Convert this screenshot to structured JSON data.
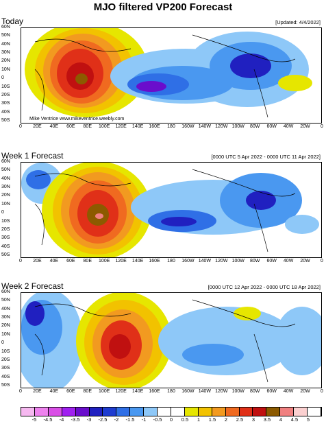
{
  "title": "MJO filtered VP200 Forecast",
  "panels": [
    {
      "label": "Today",
      "range": "[Updated: 4/4/2022]",
      "credit": "Mike Ventrice www.mikeventrice.weebly.com"
    },
    {
      "label": "Week 1 Forecast",
      "range": "[0000 UTC 5 Apr 2022 - 0000 UTC 11 Apr 2022]",
      "credit": ""
    },
    {
      "label": "Week 2 Forecast",
      "range": "[0000 UTC 12 Apr 2022 - 0000 UTC 18 Apr 2022]",
      "credit": ""
    }
  ],
  "lat_labels": [
    "60N",
    "50N",
    "40N",
    "30N",
    "20N",
    "10N",
    "0",
    "10S",
    "20S",
    "30S",
    "40S",
    "50S"
  ],
  "lon_labels": [
    "0",
    "20E",
    "40E",
    "60E",
    "80E",
    "100E",
    "120E",
    "140E",
    "160E",
    "180",
    "160W",
    "140W",
    "120W",
    "100W",
    "80W",
    "60W",
    "40W",
    "20W",
    "0"
  ],
  "colorbar": {
    "labels": [
      "-5",
      "-4.5",
      "-4",
      "-3.5",
      "-3",
      "-2.5",
      "-2",
      "-1.5",
      "-1",
      "-0.5",
      "0",
      "0.5",
      "1",
      "1.5",
      "2",
      "2.5",
      "3",
      "3.5",
      "4",
      "4.5",
      "5"
    ],
    "colors": [
      "#f6b8f0",
      "#ee82ee",
      "#d94fe6",
      "#a020f0",
      "#6a0dcc",
      "#2020c0",
      "#1e3cd0",
      "#2f6fe6",
      "#4a98f0",
      "#8ec8f8",
      "#ffffff",
      "#ffffff",
      "#e6e600",
      "#f2c200",
      "#f29a20",
      "#f06a20",
      "#e03018",
      "#c01010",
      "#8c5a00",
      "#f08080",
      "#fbd0d0",
      "#ffffff"
    ]
  }
}
